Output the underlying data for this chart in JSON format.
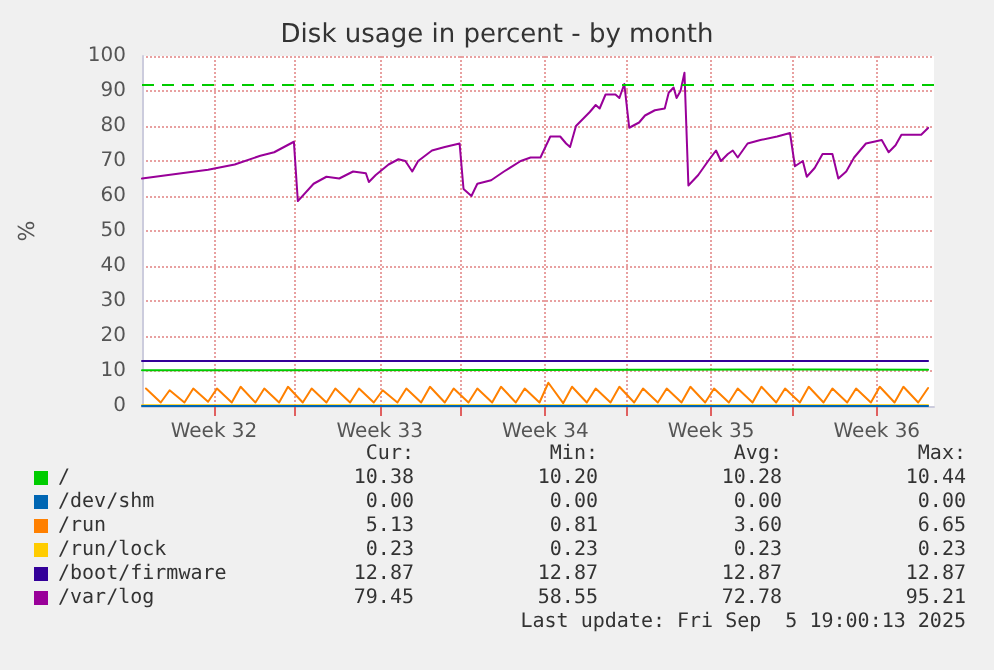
{
  "chart_data": {
    "type": "line",
    "title": "Disk usage in percent - by month",
    "ylabel": "%",
    "xlim": [
      "2025-08-03T13:00",
      "2025-09-06T00:00"
    ],
    "xticks": [
      {
        "value": "2025-08-06T14:00",
        "label": "Week 32"
      },
      {
        "value": "2025-08-10T00:00",
        "label": null
      },
      {
        "value": "2025-08-13T14:00",
        "label": "Week 33"
      },
      {
        "value": "2025-08-17T00:00",
        "label": null
      },
      {
        "value": "2025-08-20T14:00",
        "label": "Week 34"
      },
      {
        "value": "2025-08-24T00:00",
        "label": null
      },
      {
        "value": "2025-08-27T14:00",
        "label": "Week 35"
      },
      {
        "value": "2025-08-31T00:00",
        "label": null
      },
      {
        "value": "2025-09-03T14:00",
        "label": "Week 36"
      }
    ],
    "ylim": [
      0,
      100
    ],
    "yticks": [
      0,
      10,
      20,
      30,
      40,
      50,
      60,
      70,
      80,
      90,
      100
    ],
    "grid": true,
    "legend": "bottom",
    "marker": "none",
    "line_style": "solid",
    "ref_lines": [
      {
        "axis": "y",
        "value": 92,
        "color": "#00cc00",
        "line_style": "dashed"
      }
    ],
    "series": [
      {
        "name": "/",
        "color": "#00cc00",
        "x": [
          "2025-08-03T13:00",
          "2025-08-20T00:00",
          "2025-09-01T00:00",
          "2025-09-05T18:00"
        ],
        "values": [
          10.2,
          10.3,
          10.44,
          10.38
        ]
      },
      {
        "name": "/dev/shm",
        "color": "#0066b3",
        "x": [
          "2025-08-03T13:00",
          "2025-09-05T18:00"
        ],
        "values": [
          0,
          0
        ]
      },
      {
        "name": "/run",
        "color": "#ff8000",
        "x": [
          "2025-08-03T17:00",
          "2025-08-04T08:00",
          "2025-08-04T17:00",
          "2025-08-05T08:00",
          "2025-08-05T17:00",
          "2025-08-06T08:00",
          "2025-08-06T17:00",
          "2025-08-07T08:00",
          "2025-08-07T17:00",
          "2025-08-08T08:00",
          "2025-08-08T17:00",
          "2025-08-09T08:00",
          "2025-08-09T17:00",
          "2025-08-10T08:00",
          "2025-08-10T17:00",
          "2025-08-11T08:00",
          "2025-08-11T17:00",
          "2025-08-12T08:00",
          "2025-08-12T17:00",
          "2025-08-13T08:00",
          "2025-08-13T17:00",
          "2025-08-14T08:00",
          "2025-08-14T17:00",
          "2025-08-15T08:00",
          "2025-08-15T17:00",
          "2025-08-16T08:00",
          "2025-08-16T17:00",
          "2025-08-17T08:00",
          "2025-08-17T17:00",
          "2025-08-18T08:00",
          "2025-08-18T17:00",
          "2025-08-19T08:00",
          "2025-08-19T17:00",
          "2025-08-20T08:00",
          "2025-08-20T17:00",
          "2025-08-21T08:00",
          "2025-08-21T17:00",
          "2025-08-22T08:00",
          "2025-08-22T17:00",
          "2025-08-23T08:00",
          "2025-08-23T17:00",
          "2025-08-24T08:00",
          "2025-08-24T17:00",
          "2025-08-25T08:00",
          "2025-08-25T17:00",
          "2025-08-26T08:00",
          "2025-08-26T17:00",
          "2025-08-27T08:00",
          "2025-08-27T17:00",
          "2025-08-28T08:00",
          "2025-08-28T17:00",
          "2025-08-29T08:00",
          "2025-08-29T17:00",
          "2025-08-30T08:00",
          "2025-08-30T17:00",
          "2025-08-31T08:00",
          "2025-08-31T17:00",
          "2025-09-01T08:00",
          "2025-09-01T17:00",
          "2025-09-02T08:00",
          "2025-09-02T17:00",
          "2025-09-03T08:00",
          "2025-09-03T17:00",
          "2025-09-04T08:00",
          "2025-09-04T17:00",
          "2025-09-05T08:00",
          "2025-09-05T18:00"
        ],
        "values": [
          5,
          1,
          4.5,
          1,
          5,
          1.2,
          5,
          1,
          5.5,
          1,
          5,
          1,
          5.5,
          1,
          5,
          1,
          5,
          1,
          5,
          1,
          4.5,
          1,
          5,
          1,
          5.5,
          1,
          5,
          1,
          5,
          1,
          5.5,
          1,
          5,
          1,
          6.65,
          0.81,
          5.5,
          1,
          5,
          1,
          5.5,
          1,
          5,
          1,
          5,
          1,
          5.5,
          1,
          5,
          1,
          5,
          1,
          5.5,
          1,
          5,
          1,
          5.5,
          1,
          5,
          1,
          5,
          1,
          5.5,
          1,
          5.5,
          1,
          5.13
        ]
      },
      {
        "name": "/run/lock",
        "color": "#ffcc00",
        "x": [
          "2025-08-03T13:00",
          "2025-09-05T18:00"
        ],
        "values": [
          0.23,
          0.23
        ]
      },
      {
        "name": "/boot/firmware",
        "color": "#330099",
        "x": [
          "2025-08-03T13:00",
          "2025-09-05T18:00"
        ],
        "values": [
          12.87,
          12.87
        ]
      },
      {
        "name": "/var/log",
        "color": "#990099",
        "x": [
          "2025-08-03T13:00",
          "2025-08-05T05:00",
          "2025-08-06T08:00",
          "2025-08-07T11:00",
          "2025-08-08T13:00",
          "2025-08-09T03:00",
          "2025-08-09T23:00",
          "2025-08-10T03:00",
          "2025-08-10T19:00",
          "2025-08-11T08:00",
          "2025-08-11T21:00",
          "2025-08-12T11:00",
          "2025-08-13T00:00",
          "2025-08-13T03:00",
          "2025-08-13T10:00",
          "2025-08-13T23:00",
          "2025-08-14T09:00",
          "2025-08-14T16:00",
          "2025-08-14T23:00",
          "2025-08-15T05:00",
          "2025-08-15T19:00",
          "2025-08-16T08:00",
          "2025-08-16T23:00",
          "2025-08-17T03:00",
          "2025-08-17T11:00",
          "2025-08-17T17:00",
          "2025-08-18T07:00",
          "2025-08-18T20:00",
          "2025-08-19T13:00",
          "2025-08-19T23:00",
          "2025-08-20T09:00",
          "2025-08-20T19:00",
          "2025-08-21T05:00",
          "2025-08-21T11:00",
          "2025-08-21T15:00",
          "2025-08-21T21:00",
          "2025-08-22T11:00",
          "2025-08-22T17:00",
          "2025-08-22T21:00",
          "2025-08-23T03:00",
          "2025-08-23T13:00",
          "2025-08-23T17:00",
          "2025-08-23T22:00",
          "2025-08-24T03:00",
          "2025-08-24T13:00",
          "2025-08-24T19:00",
          "2025-08-25T05:00",
          "2025-08-25T15:00",
          "2025-08-25T19:00",
          "2025-08-26T00:00",
          "2025-08-26T03:00",
          "2025-08-26T07:00",
          "2025-08-26T11:00",
          "2025-08-26T15:00",
          "2025-08-27T01:00",
          "2025-08-27T11:00",
          "2025-08-27T19:00",
          "2025-08-28T00:00",
          "2025-08-28T07:00",
          "2025-08-28T12:00",
          "2025-08-28T17:00",
          "2025-08-29T03:00",
          "2025-08-29T16:00",
          "2025-08-30T09:00",
          "2025-08-30T22:00",
          "2025-08-31T03:00",
          "2025-08-31T11:00",
          "2025-08-31T15:00",
          "2025-08-31T23:00",
          "2025-09-01T07:00",
          "2025-09-01T17:00",
          "2025-09-01T23:00",
          "2025-09-02T07:00",
          "2025-09-02T15:00",
          "2025-09-03T03:00",
          "2025-09-03T19:00",
          "2025-09-04T02:00",
          "2025-09-04T09:00",
          "2025-09-04T15:00",
          "2025-09-05T11:00",
          "2025-09-05T18:00"
        ],
        "values": [
          65,
          66.5,
          67.5,
          69,
          71.5,
          72.5,
          75.5,
          58.55,
          63.5,
          65.5,
          65,
          67,
          66.5,
          64,
          66,
          69,
          70.5,
          70,
          67,
          70,
          73,
          74,
          75,
          62,
          60,
          63.5,
          64.5,
          67,
          70,
          71,
          71,
          77,
          77,
          75,
          74,
          80,
          84,
          86,
          85,
          89,
          89,
          88,
          92,
          79.5,
          81,
          83,
          84.5,
          85,
          89.5,
          91,
          88,
          90,
          95.21,
          63,
          66,
          70,
          73,
          70,
          72,
          73,
          71,
          75,
          76,
          77,
          78,
          68.5,
          70,
          65.5,
          68,
          72,
          72,
          65,
          67,
          71,
          75,
          76,
          72.5,
          74.5,
          77.5,
          77.5,
          79.45
        ]
      }
    ],
    "annotations": [
      "Cur:",
      "Min:",
      "Avg:",
      "Max:",
      "10.38",
      "10.20",
      "10.28",
      "10.44",
      "0.00",
      "0.00",
      "0.00",
      "0.00",
      "5.13",
      "0.81",
      "3.60",
      "6.65",
      "0.23",
      "0.23",
      "0.23",
      "0.23",
      "12.87",
      "12.87",
      "12.87",
      "12.87",
      "79.45",
      "58.55",
      "72.78",
      "95.21",
      "Last update: Fri Sep  5 19:00:13 2025"
    ]
  }
}
